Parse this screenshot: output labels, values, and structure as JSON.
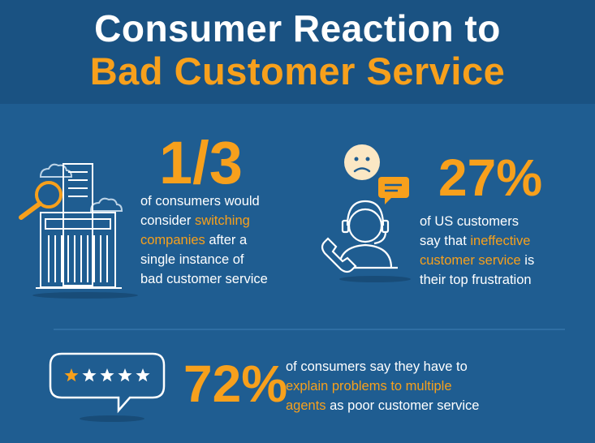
{
  "header": {
    "title_line1": "Consumer Reaction to",
    "title_line2": "Bad Customer Service"
  },
  "colors": {
    "accent": "#f7a01c",
    "background": "#1f5d91",
    "header_bg": "#1a5282",
    "text": "#ffffff"
  },
  "stat_switching": {
    "value": "1/3",
    "line1": "of consumers would",
    "line2_pre": "consider ",
    "line2_hl": "switching",
    "line3_hl": "companies",
    "line3_post": " after a",
    "line4": "single instance of",
    "line5": "bad customer service",
    "icon": "office-building-magnifier-icon"
  },
  "stat_frustration": {
    "value": "27%",
    "line1": "of US customers",
    "line2_pre": "say that ",
    "line2_hl": "ineffective",
    "line3_hl": "customer service",
    "line3_post": " is",
    "line4": "their top frustration",
    "icon": "support-agent-sad-face-icon"
  },
  "stat_agents": {
    "value": "72%",
    "line1": "of consumers say they have to",
    "line2_hl": "explain problems to multiple",
    "line3_hl": "agents",
    "line3_post": " as poor customer service",
    "icon": "star-rating-speech-bubble-icon",
    "rating": {
      "filled": 1,
      "total": 5
    }
  }
}
